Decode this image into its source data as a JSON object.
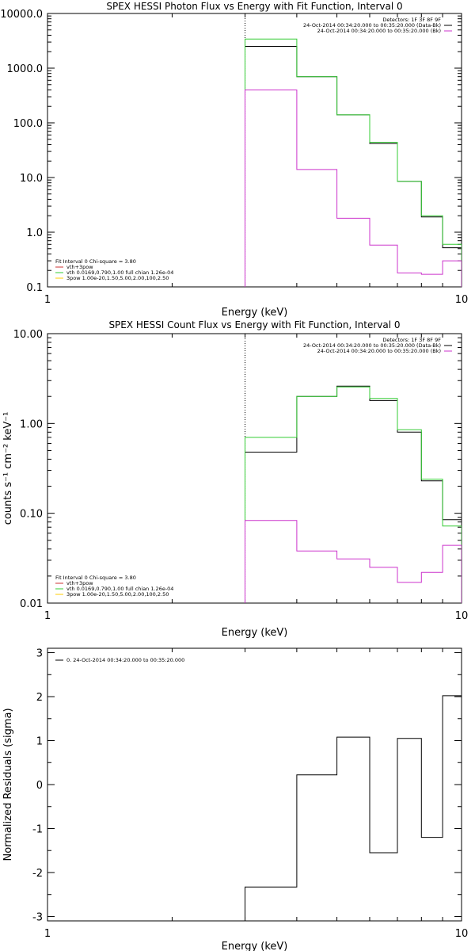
{
  "colors": {
    "data": "#000000",
    "thermal": "#cc33cc",
    "powerlaw": "#33cc33",
    "sum": "#cc3333",
    "sub": "#ffcc00"
  },
  "chart_data": [
    {
      "type": "line",
      "title": "SPEX HESSI Photon Flux vs Energy with Fit Function, Interval 0",
      "xlabel": "Energy (keV)",
      "ylabel": "",
      "xscale": "log",
      "yscale": "log",
      "xlim": [
        1,
        10
      ],
      "ylim": [
        0.1,
        10000
      ],
      "xticks": [
        {
          "v": 1,
          "label": "1"
        },
        {
          "v": 10,
          "label": "10"
        }
      ],
      "yticks": [
        {
          "v": 0.1,
          "label": "0.1"
        },
        {
          "v": 1,
          "label": "1.0"
        },
        {
          "v": 10,
          "label": "10.0"
        },
        {
          "v": 100,
          "label": "100.0"
        },
        {
          "v": 1000,
          "label": "1000.0"
        },
        {
          "v": 10000,
          "label": "10000.0"
        }
      ],
      "vline": 3,
      "legend_right": [
        {
          "text": "Detectors: 1F 3F 8F 9F",
          "color": "#000000"
        },
        {
          "text": "24-Oct-2014 00:34:20.000 to 00:35:20.000 (Data-Bk)",
          "color": "#000000"
        },
        {
          "text": "24-Oct-2014 00:34:20.000 to 00:35:20.000 (Bk)",
          "color": "#cc33cc"
        }
      ],
      "legend_left": [
        {
          "text": "Fit Interval 0   Chi-square = 3.80",
          "color": ""
        },
        {
          "text": "vth+3pow",
          "color": "#cc3333"
        },
        {
          "text": "vth 0.0169,0.790,1.00  full chian 1.26e-04",
          "color": "#33cc33"
        },
        {
          "text": "3pow 1.00e-20,1.50,5.00,2.00,100,2.50",
          "color": "#ffcc00"
        }
      ],
      "edges": [
        3,
        4,
        5,
        6,
        7,
        8,
        9,
        10
      ],
      "series": [
        {
          "key": "data",
          "values": [
            2500,
            700,
            140,
            42,
            8.5,
            1.9,
            0.52
          ]
        },
        {
          "key": "powerlaw",
          "values": [
            3400,
            700,
            140,
            44,
            8.5,
            2.0,
            0.6
          ]
        },
        {
          "key": "thermal",
          "values": [
            400,
            14,
            1.8,
            0.58,
            0.18,
            0.17,
            0.3
          ]
        }
      ]
    },
    {
      "type": "line",
      "title": "SPEX HESSI Count Flux vs Energy with Fit Function, Interval 0",
      "xlabel": "Energy (keV)",
      "ylabel": "counts s⁻¹ cm⁻² keV⁻¹",
      "xscale": "log",
      "yscale": "log",
      "xlim": [
        1,
        10
      ],
      "ylim": [
        0.01,
        10
      ],
      "xticks": [
        {
          "v": 1,
          "label": "1"
        },
        {
          "v": 10,
          "label": "10"
        }
      ],
      "yticks": [
        {
          "v": 0.01,
          "label": "0.01"
        },
        {
          "v": 0.1,
          "label": "0.10"
        },
        {
          "v": 1,
          "label": "1.00"
        },
        {
          "v": 10,
          "label": "10.00"
        }
      ],
      "vline": 3,
      "legend_right": [
        {
          "text": "Detectors: 1F 3F 8F 9F",
          "color": "#000000"
        },
        {
          "text": "24-Oct-2014 00:34:20.000 to 00:35:20.000 (Data-Bk)",
          "color": "#000000"
        },
        {
          "text": "24-Oct-2014 00:34:20.000 to 00:35:20.000 (Bk)",
          "color": "#cc33cc"
        }
      ],
      "legend_left": [
        {
          "text": "Fit Interval 0   Chi-square = 3.80",
          "color": ""
        },
        {
          "text": "vth+3pow",
          "color": "#cc3333"
        },
        {
          "text": "vth 0.0169,0.790,1.00  full chian 1.26e-04",
          "color": "#33cc33"
        },
        {
          "text": "3pow 1.00e-20,1.50,5.00,2.00,100,2.50",
          "color": "#ffcc00"
        }
      ],
      "edges": [
        3,
        4,
        5,
        6,
        7,
        8,
        9,
        10
      ],
      "series": [
        {
          "key": "data",
          "values": [
            0.48,
            2.0,
            2.6,
            1.8,
            0.8,
            0.23,
            0.085
          ]
        },
        {
          "key": "powerlaw",
          "values": [
            0.7,
            2.0,
            2.55,
            1.9,
            0.85,
            0.24,
            0.072
          ]
        },
        {
          "key": "thermal",
          "values": [
            0.083,
            0.038,
            0.031,
            0.025,
            0.017,
            0.022,
            0.044
          ]
        }
      ]
    },
    {
      "type": "line",
      "title": "",
      "xlabel": "Energy (keV)",
      "ylabel": "Normalized Residuals (sigma)",
      "xscale": "log",
      "yscale": "linear",
      "xlim": [
        1,
        10
      ],
      "ylim": [
        -3.1,
        3.1
      ],
      "xticks": [
        {
          "v": 1,
          "label": "1"
        },
        {
          "v": 10,
          "label": "10"
        }
      ],
      "yticks": [
        {
          "v": -3,
          "label": "-3"
        },
        {
          "v": -2,
          "label": "-2"
        },
        {
          "v": -1,
          "label": "-1"
        },
        {
          "v": 0,
          "label": "0"
        },
        {
          "v": 1,
          "label": "1"
        },
        {
          "v": 2,
          "label": "2"
        },
        {
          "v": 3,
          "label": "3"
        }
      ],
      "vline": null,
      "legend_right": [],
      "legend_left": [
        {
          "text": "0. 24-Oct-2014 00:34:20.000 to 00:35:20.000",
          "color": "#000000"
        }
      ],
      "edges": [
        3,
        4,
        5,
        6,
        7,
        8,
        9,
        10
      ],
      "series": [
        {
          "key": "data",
          "values": [
            -2.33,
            0.22,
            1.08,
            -1.55,
            1.05,
            -1.2,
            2.02
          ]
        }
      ]
    }
  ]
}
